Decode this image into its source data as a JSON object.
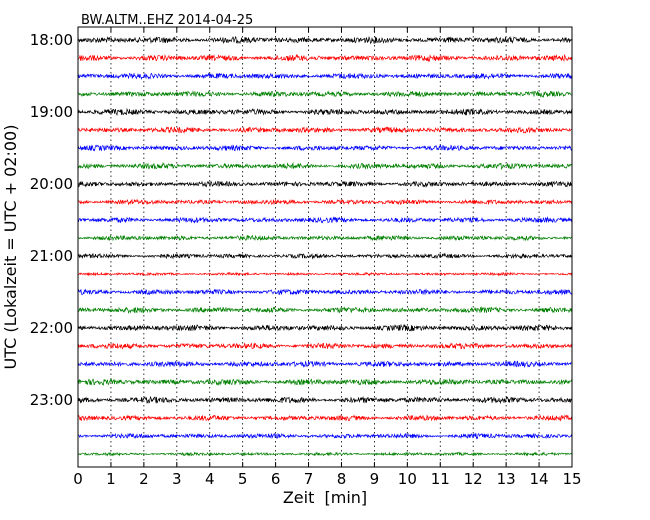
{
  "chart_data": {
    "type": "line",
    "title": "BW.ALTM..EHZ 2014-04-25",
    "xlabel": "Zeit  [min]",
    "ylabel": "UTC (Lokalzeit = UTC + 02:00)",
    "xlim": [
      0,
      15
    ],
    "x_ticks": [
      0,
      1,
      2,
      3,
      4,
      5,
      6,
      7,
      8,
      9,
      10,
      11,
      12,
      13,
      14,
      15
    ],
    "x_tick_labels": [
      "0",
      "1",
      "2",
      "3",
      "4",
      "5",
      "6",
      "7",
      "8",
      "9",
      "10",
      "11",
      "12",
      "13",
      "14",
      "15"
    ],
    "y_ticks": [
      "18:00",
      "19:00",
      "20:00",
      "21:00",
      "22:00",
      "23:00"
    ],
    "grid": "vertical dotted",
    "rows": [
      {
        "label": "18:00",
        "color": "#000000",
        "amplitude": 0.85
      },
      {
        "label": "18:15",
        "color": "#ff0000",
        "amplitude": 0.8
      },
      {
        "label": "18:30",
        "color": "#0000ff",
        "amplitude": 0.75
      },
      {
        "label": "18:45",
        "color": "#008000",
        "amplitude": 0.75
      },
      {
        "label": "19:00",
        "color": "#000000",
        "amplitude": 0.8
      },
      {
        "label": "19:15",
        "color": "#ff0000",
        "amplitude": 0.75
      },
      {
        "label": "19:30",
        "color": "#0000ff",
        "amplitude": 0.7
      },
      {
        "label": "19:45",
        "color": "#008000",
        "amplitude": 0.75
      },
      {
        "label": "20:00",
        "color": "#000000",
        "amplitude": 0.7
      },
      {
        "label": "20:15",
        "color": "#ff0000",
        "amplitude": 0.65
      },
      {
        "label": "20:30",
        "color": "#0000ff",
        "amplitude": 0.7
      },
      {
        "label": "20:45",
        "color": "#008000",
        "amplitude": 0.65
      },
      {
        "label": "21:00",
        "color": "#000000",
        "amplitude": 0.6
      },
      {
        "label": "21:15",
        "color": "#ff0000",
        "amplitude": 0.35
      },
      {
        "label": "21:30",
        "color": "#0000ff",
        "amplitude": 0.7
      },
      {
        "label": "21:45",
        "color": "#008000",
        "amplitude": 0.75
      },
      {
        "label": "22:00",
        "color": "#000000",
        "amplitude": 0.8
      },
      {
        "label": "22:15",
        "color": "#ff0000",
        "amplitude": 0.75
      },
      {
        "label": "22:30",
        "color": "#0000ff",
        "amplitude": 0.75
      },
      {
        "label": "22:45",
        "color": "#008000",
        "amplitude": 0.8
      },
      {
        "label": "23:00",
        "color": "#000000",
        "amplitude": 0.8
      },
      {
        "label": "23:15",
        "color": "#ff0000",
        "amplitude": 0.7
      },
      {
        "label": "23:30",
        "color": "#0000ff",
        "amplitude": 0.65
      },
      {
        "label": "23:45",
        "color": "#008000",
        "amplitude": 0.4
      }
    ]
  }
}
